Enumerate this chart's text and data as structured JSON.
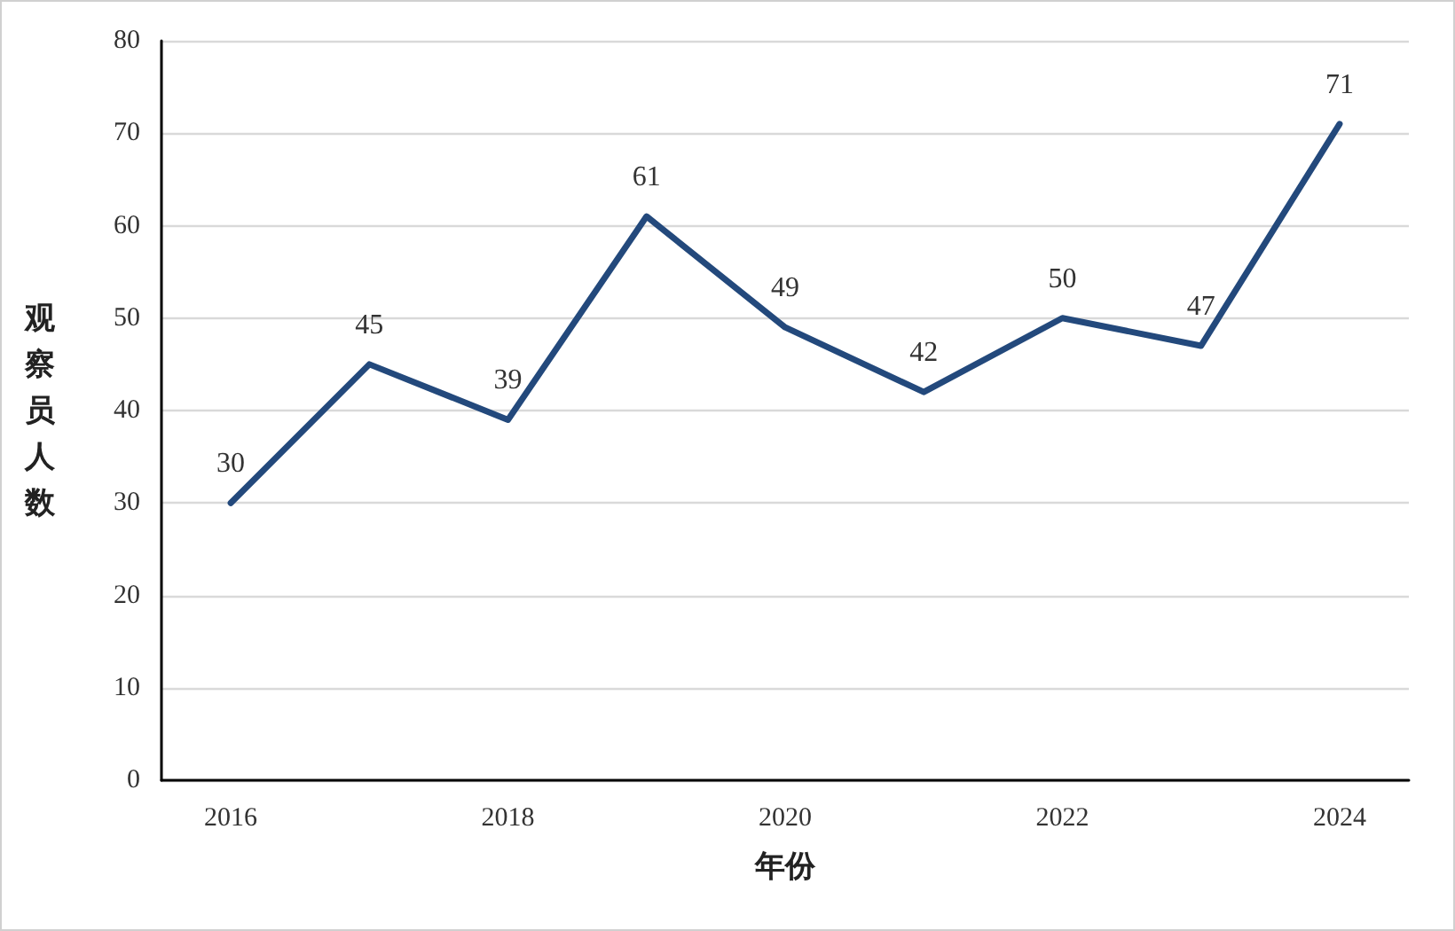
{
  "chart_data": {
    "type": "line",
    "xlabel": "年份",
    "ylabel": "观察员人数",
    "x": [
      2016,
      2017,
      2018,
      2019,
      2020,
      2021,
      2022,
      2023,
      2024
    ],
    "series": [
      {
        "color": "#23497c",
        "values": [
          30,
          45,
          39,
          61,
          49,
          42,
          50,
          47,
          71
        ]
      }
    ],
    "xlim": [
      2015.5,
      2024.5
    ],
    "xticks": [
      2016,
      2018,
      2020,
      2022,
      2024
    ],
    "ylim": [
      0,
      80
    ],
    "yticks": [
      0,
      10,
      20,
      30,
      40,
      50,
      60,
      70,
      80
    ],
    "grid": "y",
    "data_labels": true,
    "marker": "none",
    "line_style": "solid"
  }
}
